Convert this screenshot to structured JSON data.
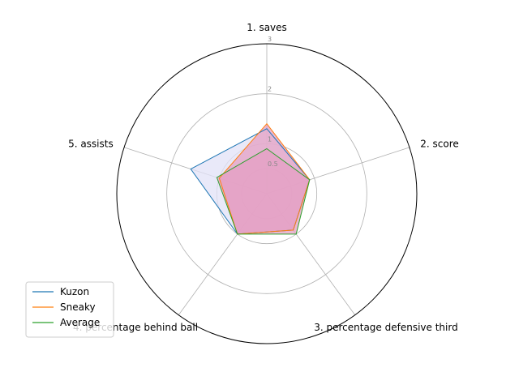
{
  "chart_data": {
    "type": "radar",
    "axes": [
      "1. saves",
      "2. score",
      "3. percentage defensive third",
      "4. percentage behind ball",
      "5. assists"
    ],
    "radial_ticks": [
      0.5,
      1,
      2,
      3
    ],
    "radial_tick_labels": [
      "0.5",
      "1",
      "2",
      "3"
    ],
    "rmax": 3,
    "grid": true,
    "legend_position": "lower-left",
    "series": [
      {
        "name": "Kuzon",
        "values": [
          1.3,
          0.9,
          0.9,
          1.0,
          1.6
        ],
        "color": "#1f77b4",
        "fill": "#e2e2f7"
      },
      {
        "name": "Sneaky",
        "values": [
          1.4,
          0.9,
          0.9,
          1.0,
          1.0
        ],
        "color": "#ff7f0e",
        "fill": "#e49fc3"
      },
      {
        "name": "Average",
        "values": [
          0.9,
          0.9,
          1.0,
          1.0,
          1.05
        ],
        "color": "#2ca02c",
        "fill": "#e49fc3"
      }
    ]
  }
}
